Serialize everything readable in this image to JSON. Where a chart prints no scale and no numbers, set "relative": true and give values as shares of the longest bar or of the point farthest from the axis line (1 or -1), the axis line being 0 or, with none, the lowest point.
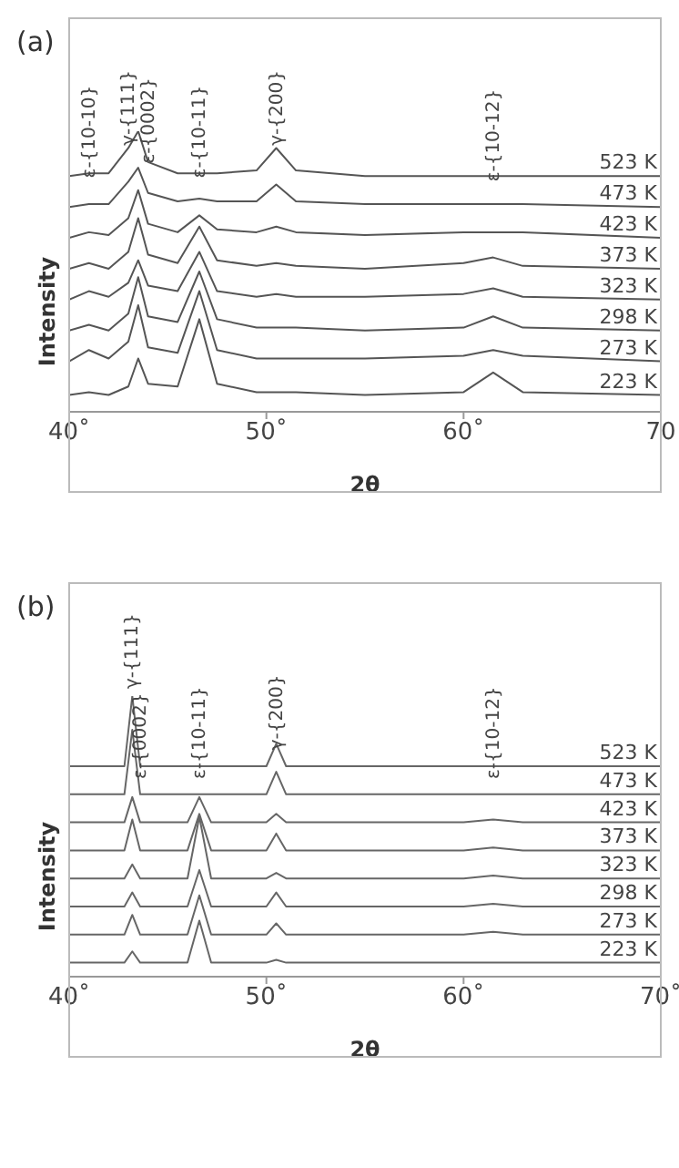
{
  "chart_data": [
    {
      "type": "line",
      "title": "(a)",
      "xlabel": "2θ",
      "ylabel": "Intensity",
      "relative": true,
      "tick_labels": "x",
      "marker": "none",
      "line_style": "solid",
      "xlim": [
        40,
        70
      ],
      "xticks": [
        {
          "value": 40,
          "label": "40˚"
        },
        {
          "value": 50,
          "label": "50˚"
        },
        {
          "value": 60,
          "label": "60˚"
        },
        {
          "value": 70,
          "label": "70"
        }
      ],
      "x": [
        40,
        41,
        42,
        43,
        43.5,
        44,
        45.5,
        46.6,
        47.5,
        49.5,
        50.5,
        51.5,
        55,
        60,
        61.5,
        63,
        70
      ],
      "annotations": [
        {
          "text": "ε-{10-10}",
          "x": 41,
          "y": 0.85
        },
        {
          "text": "γ-{111}",
          "x": 43,
          "y": 0.94
        },
        {
          "text": "ε-{0002}",
          "x": 44,
          "y": 0.89
        },
        {
          "text": "ε-{10-11}",
          "x": 46.6,
          "y": 0.85
        },
        {
          "text": "γ-{200}",
          "x": 50.5,
          "y": 0.94
        },
        {
          "text": "ε-{10-12}",
          "x": 61.5,
          "y": 0.84
        }
      ],
      "series": [
        {
          "name": "523 K",
          "color": "#555555",
          "values": [
            0.84,
            0.85,
            0.85,
            0.94,
            1,
            0.89,
            0.85,
            0.85,
            0.85,
            0.86,
            0.94,
            0.86,
            0.84,
            0.84,
            0.84,
            0.84,
            0.84
          ]
        },
        {
          "name": "473 K",
          "color": "#555555",
          "values": [
            0.73,
            0.74,
            0.74,
            0.82,
            0.87,
            0.78,
            0.75,
            0.76,
            0.75,
            0.75,
            0.81,
            0.75,
            0.74,
            0.74,
            0.74,
            0.74,
            0.73
          ]
        },
        {
          "name": "423 K",
          "color": "#555555",
          "values": [
            0.62,
            0.64,
            0.63,
            0.69,
            0.79,
            0.67,
            0.64,
            0.7,
            0.65,
            0.64,
            0.66,
            0.64,
            0.63,
            0.64,
            0.64,
            0.64,
            0.62
          ]
        },
        {
          "name": "373 K",
          "color": "#555555",
          "values": [
            0.51,
            0.53,
            0.51,
            0.57,
            0.69,
            0.56,
            0.53,
            0.66,
            0.54,
            0.52,
            0.53,
            0.52,
            0.51,
            0.53,
            0.55,
            0.52,
            0.51
          ]
        },
        {
          "name": "323 K",
          "color": "#555555",
          "values": [
            0.4,
            0.43,
            0.41,
            0.46,
            0.54,
            0.45,
            0.43,
            0.57,
            0.43,
            0.41,
            0.42,
            0.41,
            0.41,
            0.42,
            0.44,
            0.41,
            0.4
          ]
        },
        {
          "name": "298 K",
          "color": "#555555",
          "values": [
            0.29,
            0.31,
            0.29,
            0.35,
            0.48,
            0.34,
            0.32,
            0.5,
            0.33,
            0.3,
            0.3,
            0.3,
            0.29,
            0.3,
            0.34,
            0.3,
            0.29
          ]
        },
        {
          "name": "273 K",
          "color": "#555555",
          "values": [
            0.18,
            0.22,
            0.19,
            0.25,
            0.38,
            0.23,
            0.21,
            0.43,
            0.22,
            0.19,
            0.19,
            0.19,
            0.19,
            0.2,
            0.22,
            0.2,
            0.18
          ]
        },
        {
          "name": "223 K",
          "color": "#555555",
          "values": [
            0.06,
            0.07,
            0.06,
            0.09,
            0.19,
            0.1,
            0.09,
            0.33,
            0.1,
            0.07,
            0.07,
            0.07,
            0.06,
            0.07,
            0.14,
            0.07,
            0.06
          ]
        }
      ]
    },
    {
      "type": "line",
      "title": "(b)",
      "xlabel": "2θ",
      "ylabel": "Intensity",
      "relative": true,
      "tick_labels": "x",
      "marker": "none",
      "line_style": "solid",
      "xlim": [
        40,
        70
      ],
      "xticks": [
        {
          "value": 40,
          "label": "40˚"
        },
        {
          "value": 50,
          "label": "50˚"
        },
        {
          "value": 60,
          "label": "60˚"
        },
        {
          "value": 70,
          "label": "70˚"
        }
      ],
      "x": [
        40,
        42.8,
        43.2,
        43.6,
        46,
        46.6,
        47.2,
        50,
        50.5,
        51,
        60,
        61.5,
        63,
        70
      ],
      "annotations": [
        {
          "text": "γ-{111}",
          "x": 43.2,
          "y": 1
        },
        {
          "text": "ε-{0002}",
          "x": 43.6,
          "y": 0.75
        },
        {
          "text": "ε-{10-11}",
          "x": 46.6,
          "y": 0.75
        },
        {
          "text": "γ-{200}",
          "x": 50.5,
          "y": 0.83
        },
        {
          "text": "ε-{10-12}",
          "x": 61.5,
          "y": 0.75
        }
      ],
      "series": [
        {
          "name": "523 K",
          "color": "#666666",
          "values": [
            0.75,
            0.75,
            1,
            0.75,
            0.75,
            0.75,
            0.75,
            0.75,
            0.83,
            0.75,
            0.75,
            0.75,
            0.75,
            0.75
          ]
        },
        {
          "name": "473 K",
          "color": "#666666",
          "values": [
            0.65,
            0.65,
            0.88,
            0.65,
            0.65,
            0.65,
            0.65,
            0.65,
            0.73,
            0.65,
            0.65,
            0.65,
            0.65,
            0.65
          ]
        },
        {
          "name": "423 K",
          "color": "#666666",
          "values": [
            0.55,
            0.55,
            0.64,
            0.55,
            0.55,
            0.64,
            0.55,
            0.55,
            0.58,
            0.55,
            0.55,
            0.56,
            0.55,
            0.55
          ]
        },
        {
          "name": "373 K",
          "color": "#666666",
          "values": [
            0.45,
            0.45,
            0.56,
            0.45,
            0.45,
            0.58,
            0.45,
            0.45,
            0.51,
            0.45,
            0.45,
            0.46,
            0.45,
            0.45
          ]
        },
        {
          "name": "323 K",
          "color": "#666666",
          "values": [
            0.35,
            0.35,
            0.4,
            0.35,
            0.35,
            0.57,
            0.35,
            0.35,
            0.37,
            0.35,
            0.35,
            0.36,
            0.35,
            0.35
          ]
        },
        {
          "name": "298 K",
          "color": "#666666",
          "values": [
            0.25,
            0.25,
            0.3,
            0.25,
            0.25,
            0.38,
            0.25,
            0.25,
            0.3,
            0.25,
            0.25,
            0.26,
            0.25,
            0.25
          ]
        },
        {
          "name": "273 K",
          "color": "#666666",
          "values": [
            0.15,
            0.15,
            0.22,
            0.15,
            0.15,
            0.29,
            0.15,
            0.15,
            0.19,
            0.15,
            0.15,
            0.16,
            0.15,
            0.15
          ]
        },
        {
          "name": "223 K",
          "color": "#666666",
          "values": [
            0.05,
            0.05,
            0.09,
            0.05,
            0.05,
            0.2,
            0.05,
            0.05,
            0.06,
            0.05,
            0.05,
            0.05,
            0.05,
            0.05
          ]
        }
      ]
    }
  ]
}
